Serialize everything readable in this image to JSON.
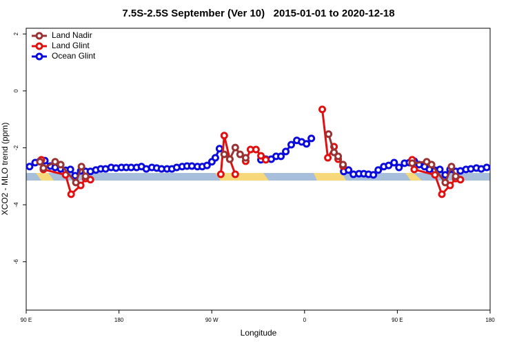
{
  "chart_data": {
    "type": "line",
    "title": "7.5S-2.5S September (Ver 10)   2015-01-01 to 2020-12-18",
    "x_label": "Longitude",
    "y_label": "XCO2 - MLO trend (ppm)",
    "xlim": [
      90,
      540
    ],
    "xticks": [
      {
        "value": 90,
        "label": "90 E"
      },
      180,
      {
        "value": 270,
        "label": "90 W"
      },
      {
        "value": 360,
        "label": "0"
      },
      {
        "value": 450,
        "label": "90 E"
      },
      {
        "value": 540,
        "label": "180"
      }
    ],
    "ylim": [
      -7.7,
      2.2
    ],
    "yticks": [
      -6,
      -4,
      -2,
      0,
      2
    ],
    "grid": false,
    "legend": "top-left",
    "series": [
      {
        "name": "Land Nadir",
        "color": "#993333",
        "x": [
          103.4,
          106.7,
          118.1,
          123.5,
          138.2,
          143.6,
          147.6,
          200,
          282.1,
          287.5,
          292.8,
          297.5,
          302.9,
          340,
          383.3,
          388.6,
          392.6,
          397.3,
          430,
          464.4,
          478.5,
          483.2,
          496.5,
          502.5,
          506.6
        ],
        "values": [
          -2.49,
          -2.71,
          -2.49,
          -2.59,
          -3.22,
          -2.66,
          -3.0,
          null,
          -2.23,
          -2.4,
          -1.99,
          -2.23,
          -2.35,
          null,
          -1.52,
          -2.16,
          -2.3,
          -2.59,
          null,
          -2.54,
          -2.49,
          -2.59,
          -3.22,
          -2.66,
          -3.0
        ]
      },
      {
        "name": "Land Glint",
        "color": "#e01010",
        "x": [
          104.7,
          106.7,
          128.2,
          133.6,
          142.9,
          147.6,
          152.3,
          200,
          278.8,
          282.1,
          287.5,
          292.8,
          297,
          302.9,
          307.6,
          312.9,
          317.7,
          322.4,
          350,
          377.2,
          382.6,
          388.6,
          392.6,
          397.3,
          430,
          464.4,
          466.4,
          486.5,
          493.2,
          501.2,
          506.6,
          511.2
        ],
        "values": [
          -2.42,
          -2.76,
          -2.95,
          -3.63,
          -3.32,
          -3.08,
          -3.12,
          null,
          -2.93,
          -1.57,
          -2.4,
          -2.93,
          null,
          -2.47,
          -2.06,
          -2.06,
          -2.28,
          -2.42,
          null,
          -0.65,
          -2.35,
          -1.96,
          -2.4,
          -2.64,
          null,
          -2.42,
          -2.76,
          -2.95,
          -3.63,
          -3.32,
          -3.08,
          -3.12
        ]
      },
      {
        "name": "Ocean Glint",
        "color": "#0a0adc",
        "x": [
          93.3,
          98.7,
          103.4,
          108.1,
          113.5,
          118.1,
          123.5,
          128.2,
          132.9,
          137.5,
          142.9,
          147.6,
          152.3,
          157.6,
          162.3,
          167.0,
          172.4,
          177.1,
          182.4,
          187.1,
          191.8,
          197.1,
          201.8,
          206.5,
          211.9,
          216.6,
          221.3,
          226.6,
          231.3,
          236.0,
          241.3,
          246.0,
          250.7,
          256.1,
          260.8,
          265.4,
          270.1,
          273.5,
          277.5,
          300,
          317.7,
          322.4,
          327.7,
          332.4,
          337.1,
          341.8,
          347.1,
          352.5,
          357.2,
          361.9,
          366.6,
          385,
          398.0,
          402.7,
          407.4,
          412.8,
          417.5,
          422.1,
          426.8,
          431.5,
          436.9,
          441.6,
          446.9,
          451.6,
          457.0,
          461.7,
          466.4,
          471.1,
          476.4,
          481.1,
          486.5,
          491.2,
          496.5,
          501.2,
          506.6,
          511.2,
          516.6,
          521.3,
          526.7,
          531.4,
          536.7
        ],
        "values": [
          -2.66,
          -2.52,
          -2.47,
          -2.45,
          -2.64,
          -2.69,
          -2.74,
          -2.79,
          -2.76,
          -2.98,
          -2.81,
          -2.83,
          -2.83,
          -2.78,
          -2.74,
          -2.74,
          -2.69,
          -2.71,
          -2.69,
          -2.69,
          -2.69,
          -2.69,
          -2.66,
          -2.74,
          -2.69,
          -2.71,
          -2.74,
          -2.74,
          -2.74,
          -2.69,
          -2.66,
          -2.64,
          -2.64,
          -2.66,
          -2.66,
          -2.62,
          -2.49,
          -2.35,
          -2.03,
          null,
          -2.42,
          -2.4,
          -2.4,
          -2.3,
          -2.3,
          -2.13,
          -1.89,
          -1.74,
          -1.79,
          -1.86,
          -1.67,
          null,
          -2.83,
          -2.78,
          -2.93,
          -2.91,
          -2.91,
          -2.93,
          -2.95,
          -2.78,
          -2.66,
          -2.62,
          -2.52,
          -2.69,
          -2.54,
          -2.52,
          -2.47,
          -2.59,
          -2.66,
          -2.76,
          -2.79,
          -2.76,
          -2.95,
          -2.76,
          -2.83,
          -2.81,
          -2.76,
          -2.74,
          -2.71,
          -2.74,
          -2.69
        ]
      }
    ]
  }
}
